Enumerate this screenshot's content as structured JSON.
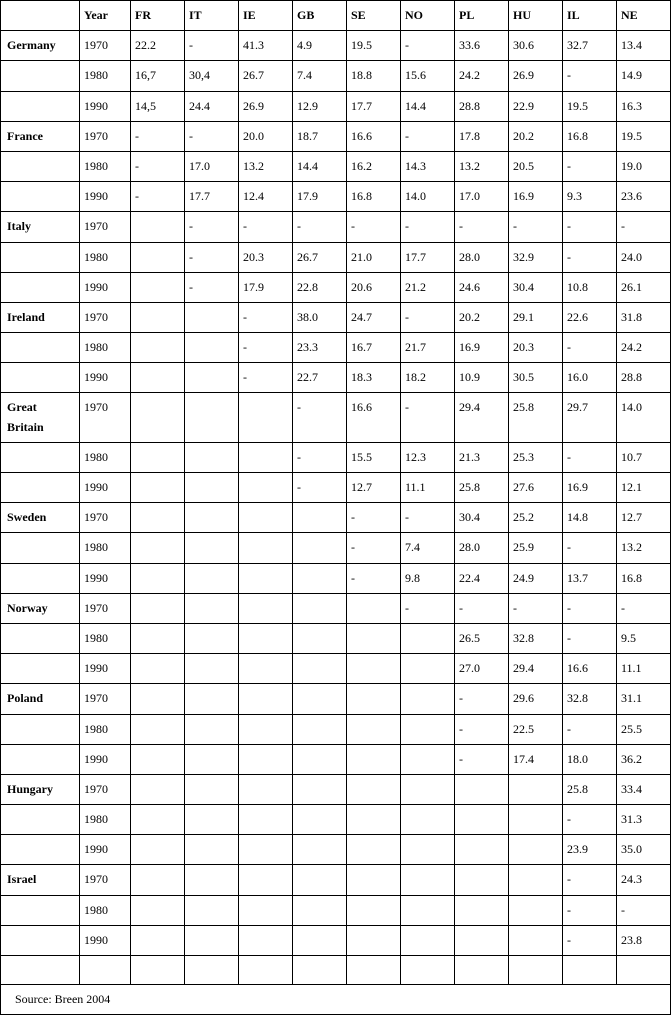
{
  "headers": [
    "",
    "Year",
    "FR",
    "IT",
    "IE",
    "GB",
    "SE",
    "NO",
    "PL",
    "HU",
    "IL",
    "NE"
  ],
  "rows": [
    [
      "Germany",
      "1970",
      "22.2",
      "-",
      "41.3",
      "4.9",
      "19.5",
      "-",
      "33.6",
      "30.6",
      "32.7",
      "13.4"
    ],
    [
      "",
      "1980",
      "16,7",
      "30,4",
      "26.7",
      "7.4",
      "18.8",
      "15.6",
      "24.2",
      "26.9",
      "-",
      "14.9"
    ],
    [
      "",
      "1990",
      "14,5",
      "24.4",
      "26.9",
      "12.9",
      "17.7",
      "14.4",
      "28.8",
      "22.9",
      "19.5",
      "16.3"
    ],
    [
      "France",
      "1970",
      "-",
      "-",
      "20.0",
      "18.7",
      "16.6",
      "-",
      "17.8",
      "20.2",
      "16.8",
      "19.5"
    ],
    [
      "",
      "1980",
      "-",
      "17.0",
      "13.2",
      "14.4",
      "16.2",
      "14.3",
      "13.2",
      "20.5",
      "-",
      "19.0"
    ],
    [
      "",
      "1990",
      "-",
      "17.7",
      "12.4",
      "17.9",
      "16.8",
      "14.0",
      "17.0",
      "16.9",
      "9.3",
      "23.6"
    ],
    [
      "Italy",
      "1970",
      "",
      "-",
      "-",
      "-",
      "-",
      "-",
      "-",
      "-",
      "-",
      "-"
    ],
    [
      "",
      "1980",
      "",
      "-",
      "20.3",
      "26.7",
      "21.0",
      "17.7",
      "28.0",
      "32.9",
      "-",
      "24.0"
    ],
    [
      "",
      "1990",
      "",
      "-",
      "17.9",
      "22.8",
      "20.6",
      "21.2",
      "24.6",
      "30.4",
      "10.8",
      "26.1"
    ],
    [
      "Ireland",
      "1970",
      "",
      "",
      "-",
      "38.0",
      "24.7",
      "-",
      "20.2",
      "29.1",
      "22.6",
      "31.8"
    ],
    [
      "",
      "1980",
      "",
      "",
      "-",
      "23.3",
      "16.7",
      "21.7",
      "16.9",
      "20.3",
      "-",
      "24.2"
    ],
    [
      "",
      "1990",
      "",
      "",
      "-",
      "22.7",
      "18.3",
      "18.2",
      "10.9",
      "30.5",
      "16.0",
      "28.8"
    ],
    [
      "Great Britain",
      "1970",
      "",
      "",
      "",
      "-",
      "16.6",
      "-",
      "29.4",
      "25.8",
      "29.7",
      "14.0"
    ],
    [
      "",
      "1980",
      "",
      "",
      "",
      "-",
      "15.5",
      "12.3",
      "21.3",
      "25.3",
      "-",
      "10.7"
    ],
    [
      "",
      "1990",
      "",
      "",
      "",
      "-",
      "12.7",
      "11.1",
      "25.8",
      "27.6",
      "16.9",
      "12.1"
    ],
    [
      "Sweden",
      "1970",
      "",
      "",
      "",
      "",
      "-",
      "-",
      "30.4",
      "25.2",
      "14.8",
      "12.7"
    ],
    [
      "",
      "1980",
      "",
      "",
      "",
      "",
      "-",
      "7.4",
      "28.0",
      "25.9",
      "-",
      "13.2"
    ],
    [
      "",
      "1990",
      "",
      "",
      "",
      "",
      "-",
      "9.8",
      "22.4",
      "24.9",
      "13.7",
      "16.8"
    ],
    [
      "Norway",
      "1970",
      "",
      "",
      "",
      "",
      "",
      "-",
      "-",
      "-",
      "-",
      "-"
    ],
    [
      "",
      "1980",
      "",
      "",
      "",
      "",
      "",
      "",
      "26.5",
      "32.8",
      "-",
      "9.5"
    ],
    [
      "",
      "1990",
      "",
      "",
      "",
      "",
      "",
      "",
      "27.0",
      "29.4",
      "16.6",
      "11.1"
    ],
    [
      "Poland",
      "1970",
      "",
      "",
      "",
      "",
      "",
      "",
      "-",
      "29.6",
      "32.8",
      "31.1"
    ],
    [
      "",
      "1980",
      "",
      "",
      "",
      "",
      "",
      "",
      "-",
      "22.5",
      "-",
      "25.5"
    ],
    [
      "",
      "1990",
      "",
      "",
      "",
      "",
      "",
      "",
      "-",
      "17.4",
      "18.0",
      "36.2"
    ],
    [
      "Hungary",
      "1970",
      "",
      "",
      "",
      "",
      "",
      "",
      "",
      "",
      "25.8",
      "33.4"
    ],
    [
      "",
      "1980",
      "",
      "",
      "",
      "",
      "",
      "",
      "",
      "",
      "-",
      "31.3"
    ],
    [
      "",
      "1990",
      "",
      "",
      "",
      "",
      "",
      "",
      "",
      "",
      "23.9",
      "35.0"
    ],
    [
      "Israel",
      "1970",
      "",
      "",
      "",
      "",
      "",
      "",
      "",
      "",
      "-",
      "24.3"
    ],
    [
      "",
      "1980",
      "",
      "",
      "",
      "",
      "",
      "",
      "",
      "",
      "-",
      "-"
    ],
    [
      "",
      "1990",
      "",
      "",
      "",
      "",
      "",
      "",
      "",
      "",
      "-",
      "23.8"
    ],
    [
      "",
      "",
      "",
      "",
      "",
      "",
      "",
      "",
      "",
      "",
      "",
      ""
    ]
  ],
  "source": "Source: Breen 2004"
}
